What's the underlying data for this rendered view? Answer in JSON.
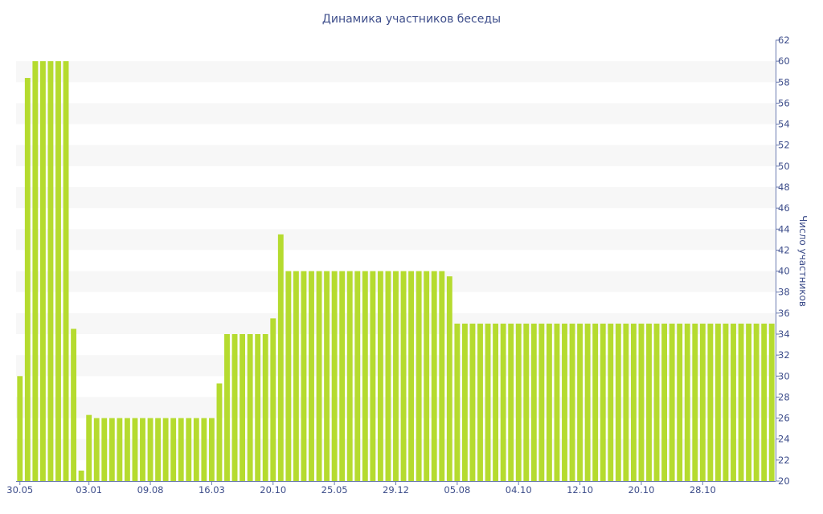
{
  "chart_data": {
    "type": "bar",
    "title": "Динамика участников беседы",
    "ylabel": "Число участников",
    "y_axis_position": "right",
    "ylim": [
      20,
      62
    ],
    "y_ticks": [
      20,
      22,
      24,
      26,
      28,
      30,
      32,
      34,
      36,
      38,
      40,
      42,
      44,
      46,
      48,
      50,
      52,
      54,
      56,
      58,
      60,
      62
    ],
    "x_tick_labels": [
      {
        "label": "30.05",
        "index": 0
      },
      {
        "label": "03.01",
        "index": 9
      },
      {
        "label": "09.08",
        "index": 17
      },
      {
        "label": "16.03",
        "index": 25
      },
      {
        "label": "20.10",
        "index": 33
      },
      {
        "label": "25.05",
        "index": 41
      },
      {
        "label": "29.12",
        "index": 49
      },
      {
        "label": "05.08",
        "index": 57
      },
      {
        "label": "04.10",
        "index": 65
      },
      {
        "label": "12.10",
        "index": 73
      },
      {
        "label": "20.10",
        "index": 81
      },
      {
        "label": "28.10",
        "index": 89
      }
    ],
    "bar_color": "#B5DB2F",
    "grid": "alternating horizontal bands",
    "band_color": "#F7F7F7",
    "values": [
      30,
      58.4,
      60,
      60,
      60,
      60,
      60,
      34.5,
      21,
      26.3,
      26,
      26,
      26,
      26,
      26,
      26,
      26,
      26,
      26,
      26,
      26,
      26,
      26,
      26,
      26,
      26,
      29.3,
      34,
      34,
      34,
      34,
      34,
      34,
      35.5,
      43.5,
      40,
      40,
      40,
      40,
      40,
      40,
      40,
      40,
      40,
      40,
      40,
      40,
      40,
      40,
      40,
      40,
      40,
      40,
      40,
      40,
      40,
      39.5,
      35,
      35,
      35,
      35,
      35,
      35,
      35,
      35,
      35,
      35,
      35,
      35,
      35,
      35,
      35,
      35,
      35,
      35,
      35,
      35,
      35,
      35,
      35,
      35,
      35,
      35,
      35,
      35,
      35,
      35,
      35,
      35,
      35,
      35,
      35,
      35,
      35,
      35,
      35,
      35,
      35,
      35
    ]
  }
}
